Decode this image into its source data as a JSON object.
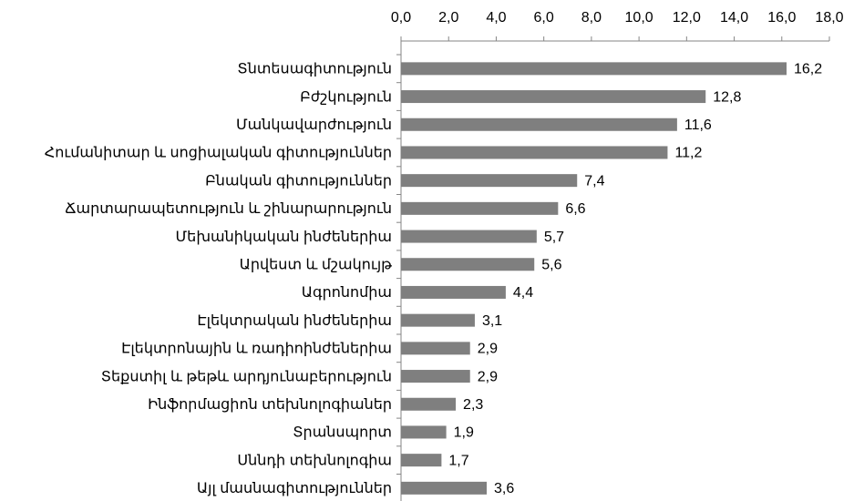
{
  "chart_data": {
    "type": "bar",
    "orientation": "horizontal",
    "categories": [
      "Տնտեսագիտություն",
      "Բժշկություն",
      "Մանկավարժություն",
      "Հումանիտար և սոցիալական գիտություններ",
      "Բնական գիտություններ",
      "Ճարտարապետություն և շինարարություն",
      "Մեխանիկական ինժեներիա",
      "Արվեստ և մշակույթ",
      "Ագրոնոմիա",
      "Էլեկտրական ինժեներիա",
      "Էլեկտրոնային և ռադիոինժեներիա",
      "Տեքստիլ և թեթև արդյունաբերություն",
      "Ինֆորմացիոն տեխնոլոգիաներ",
      "Տրանսպորտ",
      "Սննդի տեխնոլոգիա",
      "Այլ մասնագիտություններ"
    ],
    "values": [
      16.2,
      12.8,
      11.6,
      11.2,
      7.4,
      6.6,
      5.7,
      5.6,
      4.4,
      3.1,
      2.9,
      2.9,
      2.3,
      1.9,
      1.7,
      3.6
    ],
    "value_labels": [
      "16,2",
      "12,8",
      "11,6",
      "11,2",
      "7,4",
      "6,6",
      "5,7",
      "5,6",
      "4,4",
      "3,1",
      "2,9",
      "2,9",
      "2,3",
      "1,9",
      "1,7",
      "3,6"
    ],
    "color": "#7f7f7f",
    "xlim": [
      0,
      18
    ],
    "xticks": [
      {
        "value": 0,
        "label": "0,0"
      },
      {
        "value": 2,
        "label": "2,0"
      },
      {
        "value": 4,
        "label": "4,0"
      },
      {
        "value": 6,
        "label": "6,0"
      },
      {
        "value": 8,
        "label": "8,0"
      },
      {
        "value": 10,
        "label": "10,0"
      },
      {
        "value": 12,
        "label": "12,0"
      },
      {
        "value": 14,
        "label": "14,0"
      },
      {
        "value": 16,
        "label": "16,0"
      },
      {
        "value": 18,
        "label": "18,0"
      }
    ],
    "grid": false
  }
}
